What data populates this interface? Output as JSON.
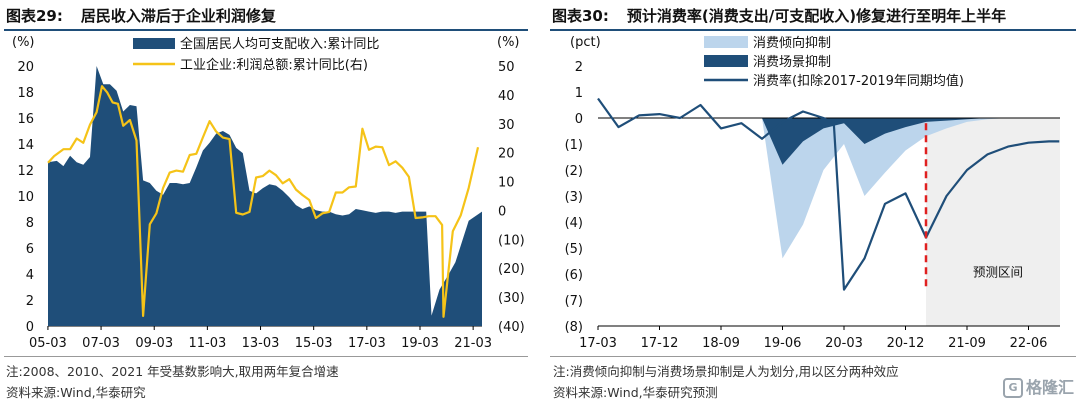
{
  "left": {
    "title_num": "图表29:",
    "title_text": "居民收入滞后于企业利润修复",
    "note1": "注:2008、2010、2021 年受基数影响大,取用两年复合增速",
    "source": "资料来源:Wind,华泰研究"
  },
  "right": {
    "title_num": "图表30:",
    "title_text": "预计消费率(消费支出/可支配收入)修复进行至明年上半年",
    "note1": "注:消费倾向抑制与消费场景抑制是人为划分,用以区分两种效应",
    "source": "资料来源:Wind,华泰研究预测"
  },
  "watermark": "格隆汇",
  "chart_data": [
    {
      "type": "area",
      "ylabel_left": "(%)",
      "ylabel_right": "(%)",
      "ylim_left": [
        0,
        20
      ],
      "ylim_right": [
        -40,
        50
      ],
      "yticks_left": [
        "0",
        "2",
        "4",
        "6",
        "8",
        "10",
        "12",
        "14",
        "16",
        "18",
        "20"
      ],
      "yticks_right": [
        "(40)",
        "(30)",
        "(20)",
        "(10)",
        "0",
        "10",
        "20",
        "30",
        "40",
        "50"
      ],
      "xticks": [
        "05-03",
        "07-03",
        "09-03",
        "11-03",
        "13-03",
        "15-03",
        "17-03",
        "19-03",
        "21-03"
      ],
      "xlim": [
        2005.17,
        2021.5
      ],
      "legend_position": "top",
      "series": [
        {
          "name": "全国居民人均可支配收入:累计同比",
          "kind": "area",
          "axis": "left",
          "color": "#1f4e79",
          "points": [
            [
              2005.17,
              12.6
            ],
            [
              2005.5,
              12.7
            ],
            [
              2005.75,
              12.3
            ],
            [
              2006.0,
              13.1
            ],
            [
              2006.25,
              12.6
            ],
            [
              2006.5,
              12.4
            ],
            [
              2006.75,
              13.0
            ],
            [
              2007.0,
              20.0
            ],
            [
              2007.25,
              18.6
            ],
            [
              2007.5,
              18.6
            ],
            [
              2007.75,
              18.1
            ],
            [
              2008.0,
              16.5
            ],
            [
              2008.25,
              17.0
            ],
            [
              2008.5,
              16.9
            ],
            [
              2008.75,
              11.2
            ],
            [
              2009.0,
              11.0
            ],
            [
              2009.25,
              10.4
            ],
            [
              2009.5,
              10.1
            ],
            [
              2009.75,
              11.0
            ],
            [
              2010.0,
              11.0
            ],
            [
              2010.25,
              10.9
            ],
            [
              2010.5,
              11.0
            ],
            [
              2010.75,
              12.2
            ],
            [
              2011.0,
              13.5
            ],
            [
              2011.25,
              14.1
            ],
            [
              2011.5,
              14.8
            ],
            [
              2011.75,
              15.0
            ],
            [
              2012.0,
              14.7
            ],
            [
              2012.25,
              13.7
            ],
            [
              2012.5,
              13.3
            ],
            [
              2012.75,
              10.4
            ],
            [
              2013.0,
              10.2
            ],
            [
              2013.25,
              10.6
            ],
            [
              2013.5,
              10.9
            ],
            [
              2013.75,
              10.8
            ],
            [
              2014.0,
              10.4
            ],
            [
              2014.25,
              9.9
            ],
            [
              2014.5,
              9.3
            ],
            [
              2014.75,
              9.0
            ],
            [
              2015.0,
              9.2
            ],
            [
              2015.25,
              8.9
            ],
            [
              2015.5,
              8.8
            ],
            [
              2015.75,
              8.8
            ],
            [
              2016.0,
              8.6
            ],
            [
              2016.25,
              8.5
            ],
            [
              2016.5,
              8.6
            ],
            [
              2016.75,
              9.0
            ],
            [
              2017.0,
              8.9
            ],
            [
              2017.25,
              8.8
            ],
            [
              2017.5,
              8.7
            ],
            [
              2017.75,
              8.8
            ],
            [
              2018.0,
              8.8
            ],
            [
              2018.25,
              8.7
            ],
            [
              2018.5,
              8.8
            ],
            [
              2018.75,
              8.8
            ],
            [
              2019.0,
              8.8
            ],
            [
              2019.25,
              8.8
            ],
            [
              2019.4,
              8.8
            ],
            [
              2019.6,
              0.8
            ],
            [
              2019.9,
              2.8
            ],
            [
              2020.25,
              4.0
            ],
            [
              2020.5,
              4.9
            ],
            [
              2021.0,
              8.1
            ],
            [
              2021.5,
              8.8
            ]
          ]
        },
        {
          "name": "工业企业:利润总额:累计同比(右)",
          "kind": "line",
          "axis": "right",
          "color": "#f5c318",
          "points": [
            [
              2005.17,
              16.5
            ],
            [
              2005.4,
              18.8
            ],
            [
              2005.75,
              21.2
            ],
            [
              2006.0,
              21.2
            ],
            [
              2006.25,
              24.9
            ],
            [
              2006.5,
              23.4
            ],
            [
              2006.75,
              29.7
            ],
            [
              2007.0,
              34.0
            ],
            [
              2007.2,
              43.0
            ],
            [
              2007.4,
              40.8
            ],
            [
              2007.6,
              37.4
            ],
            [
              2007.8,
              36.9
            ],
            [
              2008.0,
              29.3
            ],
            [
              2008.25,
              31.3
            ],
            [
              2008.5,
              24.2
            ],
            [
              2008.75,
              -36.5
            ],
            [
              2009.0,
              -4.8
            ],
            [
              2009.25,
              -1.0
            ],
            [
              2009.5,
              7.8
            ],
            [
              2009.75,
              13.1
            ],
            [
              2010.0,
              13.8
            ],
            [
              2010.25,
              13.4
            ],
            [
              2010.5,
              19.2
            ],
            [
              2010.75,
              19.6
            ],
            [
              2011.0,
              25.3
            ],
            [
              2011.25,
              30.9
            ],
            [
              2011.5,
              27.3
            ],
            [
              2011.75,
              25.2
            ],
            [
              2012.0,
              24.7
            ],
            [
              2012.25,
              -0.8
            ],
            [
              2012.5,
              -1.4
            ],
            [
              2012.75,
              -0.5
            ],
            [
              2013.0,
              11.4
            ],
            [
              2013.25,
              11.9
            ],
            [
              2013.5,
              13.8
            ],
            [
              2013.75,
              12.2
            ],
            [
              2014.0,
              9.4
            ],
            [
              2014.25,
              10.8
            ],
            [
              2014.5,
              7.2
            ],
            [
              2014.75,
              5.3
            ],
            [
              2015.0,
              3.6
            ],
            [
              2015.25,
              -2.6
            ],
            [
              2015.5,
              -1.0
            ],
            [
              2015.75,
              -0.5
            ],
            [
              2016.0,
              6.2
            ],
            [
              2016.25,
              6.2
            ],
            [
              2016.5,
              8.0
            ],
            [
              2016.75,
              8.3
            ],
            [
              2017.0,
              28.3
            ],
            [
              2017.25,
              21.0
            ],
            [
              2017.5,
              22.1
            ],
            [
              2017.75,
              21.9
            ],
            [
              2018.0,
              15.7
            ],
            [
              2018.25,
              17.0
            ],
            [
              2018.5,
              14.8
            ],
            [
              2018.75,
              11.6
            ],
            [
              2019.0,
              -2.6
            ],
            [
              2019.25,
              -2.4
            ],
            [
              2019.5,
              -2.0
            ],
            [
              2019.75,
              -2.0
            ],
            [
              2020.0,
              -5.0
            ],
            [
              2020.05,
              -36.8
            ],
            [
              2020.4,
              -7.2
            ],
            [
              2020.7,
              -1.7
            ],
            [
              2021.0,
              7.8
            ],
            [
              2021.35,
              21.9
            ]
          ]
        }
      ]
    },
    {
      "type": "area",
      "ylabel": "(pct)",
      "ylim": [
        -8,
        2
      ],
      "yticks": [
        "(8)",
        "(7)",
        "(6)",
        "(5)",
        "(4)",
        "(3)",
        "(2)",
        "(1)",
        "0",
        "1",
        "2"
      ],
      "xticks": [
        "17-03",
        "17-12",
        "18-09",
        "19-06",
        "20-03",
        "20-12",
        "21-09",
        "22-06"
      ],
      "annotation": "预测区间",
      "legend_position": "top",
      "series": [
        {
          "name": "消费倾向抑制",
          "kind": "area",
          "color": "#bcd5ec",
          "points": [
            [
              8,
              0
            ],
            [
              9,
              -3.6
            ],
            [
              10,
              -3.2
            ],
            [
              11,
              -1.6
            ],
            [
              12,
              -0.8
            ],
            [
              13,
              -2.0
            ],
            [
              14,
              -1.5
            ],
            [
              15,
              -0.9
            ],
            [
              16,
              -0.55
            ],
            [
              17,
              -0.3
            ],
            [
              18,
              -0.1
            ],
            [
              19,
              -0.05
            ],
            [
              20,
              0
            ]
          ]
        },
        {
          "name": "消费场景抑制",
          "kind": "area",
          "color": "#1f4e79",
          "points": [
            [
              8,
              0
            ],
            [
              9,
              -1.8
            ],
            [
              10,
              -0.9
            ],
            [
              11,
              -0.4
            ],
            [
              12,
              -0.2
            ],
            [
              13,
              -1.0
            ],
            [
              14,
              -0.6
            ],
            [
              15,
              -0.35
            ],
            [
              16,
              -0.15
            ],
            [
              17,
              -0.1
            ],
            [
              18,
              -0.05
            ],
            [
              19,
              0
            ],
            [
              20,
              0
            ]
          ]
        },
        {
          "name": "消费率(扣除2017-2019年同期均值)",
          "kind": "line",
          "color": "#1f4e79",
          "points": [
            [
              0,
              0.75
            ],
            [
              1,
              -0.35
            ],
            [
              2,
              0.1
            ],
            [
              3,
              0.15
            ],
            [
              4,
              0.0
            ],
            [
              5,
              0.5
            ],
            [
              6,
              -0.4
            ],
            [
              7,
              -0.2
            ],
            [
              8,
              -0.8
            ],
            [
              9,
              -0.15
            ],
            [
              10,
              0.25
            ],
            [
              11,
              0.0
            ],
            [
              11.5,
              -0.2
            ],
            [
              12,
              -6.6
            ],
            [
              13,
              -5.4
            ],
            [
              14,
              -3.3
            ],
            [
              15,
              -2.9
            ],
            [
              16,
              -4.6
            ],
            [
              17,
              -3.0
            ],
            [
              18,
              -2.0
            ],
            [
              19,
              -1.4
            ],
            [
              20,
              -1.1
            ],
            [
              21,
              -0.95
            ],
            [
              22,
              -0.9
            ],
            [
              22.5,
              -0.9
            ]
          ]
        }
      ]
    }
  ]
}
